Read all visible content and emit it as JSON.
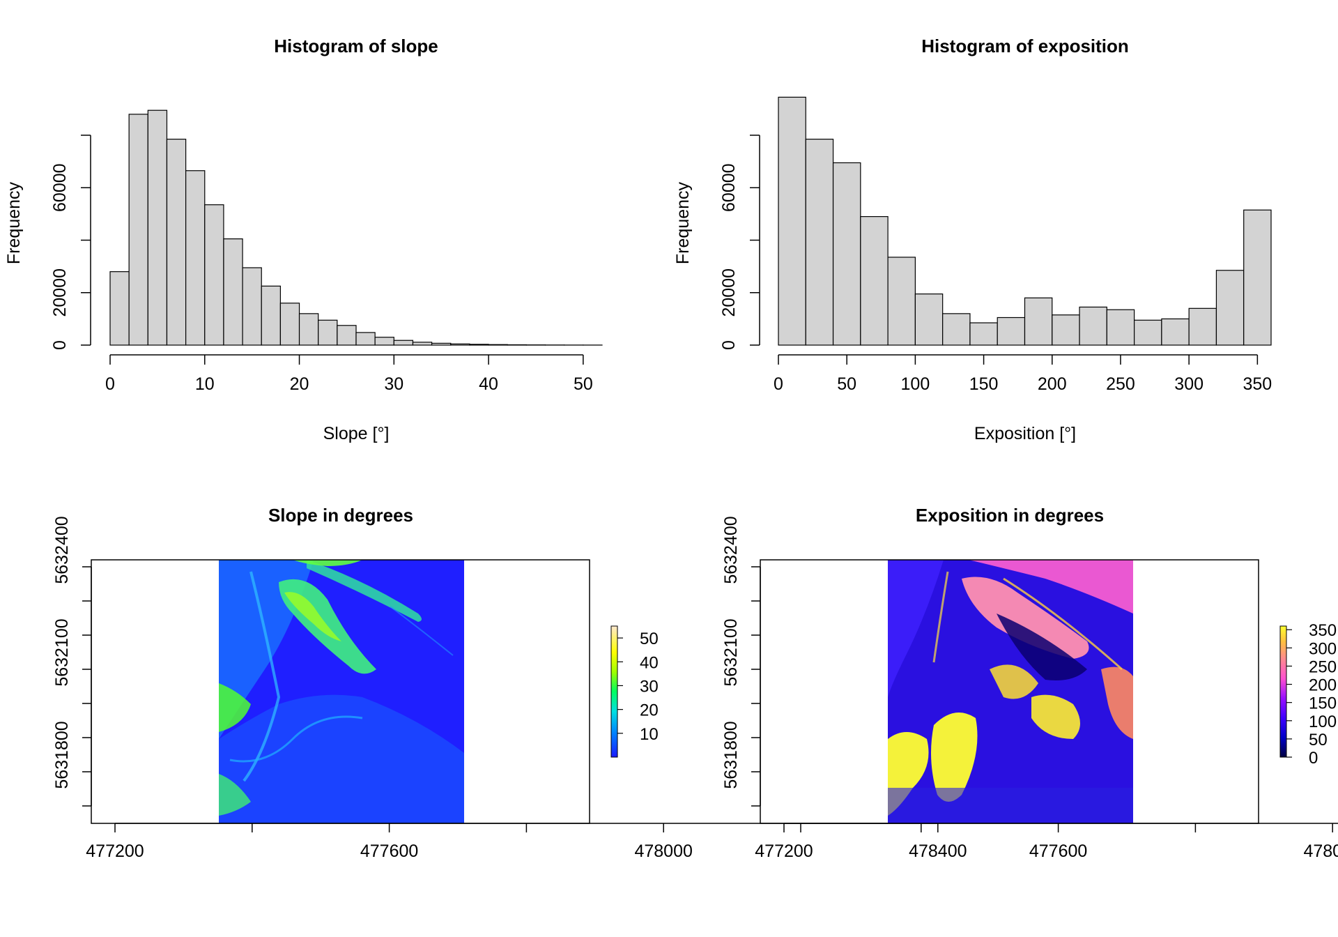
{
  "chart_data": [
    {
      "type": "bar",
      "title": "Histogram of slope",
      "xlabel": "Slope [°]",
      "ylabel": "Frequency",
      "bin_width": 2,
      "bins_start": 0,
      "values": [
        28000,
        88000,
        89500,
        78500,
        66500,
        53500,
        40500,
        29500,
        22500,
        16000,
        12000,
        9500,
        7500,
        4800,
        3000,
        1800,
        1100,
        700,
        450,
        300,
        200,
        120,
        80,
        50,
        30,
        20
      ],
      "xticks": [
        0,
        10,
        20,
        30,
        40,
        50
      ],
      "yticks": [
        0,
        20000,
        60000
      ],
      "xlim": [
        0,
        52
      ],
      "ylim": [
        0,
        80000
      ],
      "bar_color": "#d3d3d3"
    },
    {
      "type": "bar",
      "title": "Histogram of exposition",
      "xlabel": "Exposition [°]",
      "ylabel": "Frequency",
      "bin_width": 20,
      "bins_start": 0,
      "values": [
        94500,
        78500,
        69500,
        49000,
        33500,
        19500,
        12000,
        8500,
        10500,
        18000,
        11500,
        14500,
        13500,
        9500,
        10000,
        14000,
        28500,
        51500
      ],
      "xticks": [
        0,
        50,
        100,
        150,
        200,
        250,
        300,
        350
      ],
      "yticks": [
        0,
        20000,
        60000
      ],
      "xlim": [
        0,
        360
      ],
      "ylim": [
        0,
        80000
      ],
      "bar_color": "#d3d3d3"
    },
    {
      "type": "heatmap",
      "title": "Slope in degrees",
      "xticks": [
        477200,
        477600,
        478000,
        478400
      ],
      "yticks": [
        5631800,
        5632100,
        5632400
      ],
      "legend_ticks": [
        10,
        20,
        30,
        40,
        50
      ],
      "legend_range": [
        0,
        55
      ],
      "palette": [
        "#0000ff",
        "#0080ff",
        "#00ffff",
        "#00ff80",
        "#80ff00",
        "#ffff00",
        "#ffd090",
        "#ffe8d0"
      ]
    },
    {
      "type": "heatmap",
      "title": "Exposition in degrees",
      "xticks": [
        477200,
        477600,
        478000,
        478400
      ],
      "yticks": [
        5631800,
        5632100,
        5632400
      ],
      "legend_ticks": [
        0,
        50,
        100,
        150,
        200,
        250,
        300,
        350
      ],
      "legend_range": [
        0,
        360
      ],
      "palette": [
        "#000040",
        "#0000c0",
        "#3000ff",
        "#8a00ff",
        "#d040ff",
        "#ff60c0",
        "#ff9070",
        "#ffd030",
        "#ffff40"
      ]
    }
  ]
}
